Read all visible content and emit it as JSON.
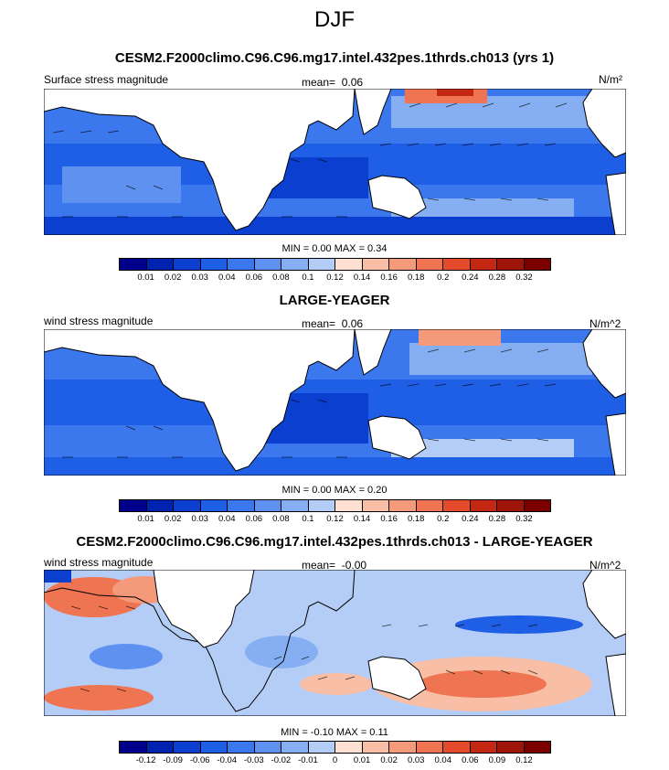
{
  "season": "DJF",
  "panels": [
    {
      "title": "CESM2.F2000climo.C96.C96.mg17.intel.432pes.1thrds.ch013 (yrs 1)",
      "left_label": "Surface stress magnitude",
      "mean_label": "mean=",
      "mean_value": "0.06",
      "units": "N/m²",
      "minmax": "MIN =   0.00 MAX =   0.34",
      "colorbar_ticks": [
        "0.01",
        "0.02",
        "0.03",
        "0.04",
        "0.06",
        "0.08",
        "0.1",
        "0.12",
        "0.14",
        "0.16",
        "0.18",
        "0.2",
        "0.24",
        "0.28",
        "0.32"
      ]
    },
    {
      "title": "LARGE-YEAGER",
      "left_label": "wind stress magnitude",
      "mean_label": "mean=",
      "mean_value": "0.06",
      "units": "N/m^2",
      "minmax": "MIN =   0.00 MAX =   0.20",
      "colorbar_ticks": [
        "0.01",
        "0.02",
        "0.03",
        "0.04",
        "0.06",
        "0.08",
        "0.1",
        "0.12",
        "0.14",
        "0.16",
        "0.18",
        "0.2",
        "0.24",
        "0.28",
        "0.32"
      ]
    },
    {
      "title": "CESM2.F2000climo.C96.C96.mg17.intel.432pes.1thrds.ch013 - LARGE-YEAGER",
      "left_label": "wind stress magnitude",
      "mean_label": "mean=",
      "mean_value": "-0.00",
      "units": "N/m^2",
      "minmax": "MIN = -0.10 MAX =   0.11",
      "colorbar_ticks": [
        "-0.12",
        "-0.09",
        "-0.06",
        "-0.04",
        "-0.03",
        "-0.02",
        "-0.01",
        "0",
        "0.01",
        "0.02",
        "0.03",
        "0.04",
        "0.06",
        "0.09",
        "0.12"
      ]
    }
  ],
  "chart_data": [
    {
      "type": "heatmap",
      "title": "CESM2.F2000climo.C96.C96.mg17.intel.432pes.1thrds.ch013 (yrs 1)",
      "variable": "Surface stress magnitude",
      "units": "N/m²",
      "mean": 0.06,
      "min": 0.0,
      "max": 0.34,
      "colorbar_levels": [
        0.01,
        0.02,
        0.03,
        0.04,
        0.06,
        0.08,
        0.1,
        0.12,
        0.14,
        0.16,
        0.18,
        0.2,
        0.24,
        0.28,
        0.32
      ],
      "colors": [
        "#00008b",
        "#0022b0",
        "#0a3fd0",
        "#1f5fe6",
        "#3b78ee",
        "#5f92f0",
        "#86aef2",
        "#b4cdf6",
        "#fde0d2",
        "#f8bfa6",
        "#f49a7a",
        "#ef7452",
        "#e44a2c",
        "#c42812",
        "#9e1408",
        "#7a0000"
      ],
      "overlay": "wind stress vectors"
    },
    {
      "type": "heatmap",
      "title": "LARGE-YEAGER",
      "variable": "wind stress magnitude",
      "units": "N/m^2",
      "mean": 0.06,
      "min": 0.0,
      "max": 0.2,
      "colorbar_levels": [
        0.01,
        0.02,
        0.03,
        0.04,
        0.06,
        0.08,
        0.1,
        0.12,
        0.14,
        0.16,
        0.18,
        0.2,
        0.24,
        0.28,
        0.32
      ],
      "colors": [
        "#00008b",
        "#0022b0",
        "#0a3fd0",
        "#1f5fe6",
        "#3b78ee",
        "#5f92f0",
        "#86aef2",
        "#b4cdf6",
        "#fde0d2",
        "#f8bfa6",
        "#f49a7a",
        "#ef7452",
        "#e44a2c",
        "#c42812",
        "#9e1408",
        "#7a0000"
      ],
      "overlay": "wind stress vectors"
    },
    {
      "type": "heatmap",
      "title": "CESM2.F2000climo.C96.C96.mg17.intel.432pes.1thrds.ch013 - LARGE-YEAGER",
      "variable": "wind stress magnitude",
      "units": "N/m^2",
      "mean": -0.0,
      "min": -0.1,
      "max": 0.11,
      "colorbar_levels": [
        -0.12,
        -0.09,
        -0.06,
        -0.04,
        -0.03,
        -0.02,
        -0.01,
        0,
        0.01,
        0.02,
        0.03,
        0.04,
        0.06,
        0.09,
        0.12
      ],
      "colors": [
        "#00008b",
        "#0022b0",
        "#0a3fd0",
        "#1f5fe6",
        "#3b78ee",
        "#5f92f0",
        "#86aef2",
        "#b4cdf6",
        "#fde0d2",
        "#f8bfa6",
        "#f49a7a",
        "#ef7452",
        "#e44a2c",
        "#c42812",
        "#9e1408",
        "#7a0000"
      ],
      "overlay": "wind stress difference vectors"
    }
  ]
}
